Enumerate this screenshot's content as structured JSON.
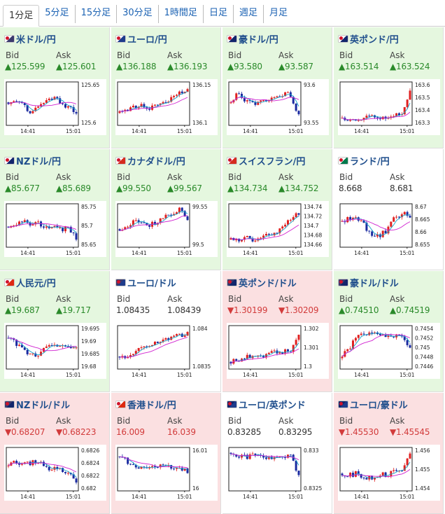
{
  "tabs": [
    "1分足",
    "5分足",
    "15分足",
    "30分足",
    "1時間足",
    "日足",
    "週足",
    "月足"
  ],
  "active_tab": 0,
  "labels": {
    "bid": "Bid",
    "ask": "Ask"
  },
  "colors": {
    "up_bg": "#e5f7df",
    "down_bg": "#fbe0e1",
    "up_text": "#2a8a2a",
    "down_text": "#d23b3b",
    "candle_up": "#e02020",
    "candle_down": "#1a2aa0",
    "ma_fast": "#14a3c8",
    "ma_slow": "#d020d0"
  },
  "pairs": [
    {
      "name": "米ドル/円",
      "flag": "jp-us",
      "trend": "up",
      "bid": "▲125.599",
      "ask": "▲125.601",
      "yticks": [
        "125.65",
        "125.6"
      ],
      "xticks": [
        "14:41",
        "15:01"
      ]
    },
    {
      "name": "ユーロ/円",
      "flag": "jp-eu",
      "trend": "up",
      "bid": "▲136.188",
      "ask": "▲136.193",
      "yticks": [
        "136.15",
        "136.1"
      ],
      "xticks": [
        "14:41",
        "15:01"
      ]
    },
    {
      "name": "豪ドル/円",
      "flag": "jp-au",
      "trend": "up",
      "bid": "▲93.580",
      "ask": "▲93.587",
      "yticks": [
        "93.6",
        "93.55"
      ],
      "xticks": [
        "14:41",
        "15:01"
      ]
    },
    {
      "name": "英ポンド/円",
      "flag": "jp-gb",
      "trend": "up",
      "bid": "▲163.514",
      "ask": "▲163.524",
      "yticks": [
        "163.6",
        "163.5",
        "163.4",
        "163.3"
      ],
      "xticks": [
        "14:41",
        "15:01"
      ]
    },
    {
      "name": "NZドル/円",
      "flag": "jp-nz",
      "trend": "up",
      "bid": "▲85.677",
      "ask": "▲85.689",
      "yticks": [
        "85.75",
        "85.7",
        "85.65"
      ],
      "xticks": [
        "14:41",
        "15:01"
      ]
    },
    {
      "name": "カナダドル/円",
      "flag": "jp-ca",
      "trend": "up",
      "bid": "▲99.550",
      "ask": "▲99.567",
      "yticks": [
        "99.55",
        "99.5"
      ],
      "xticks": [
        "14:41",
        "15:01"
      ]
    },
    {
      "name": "スイスフラン/円",
      "flag": "jp-ch",
      "trend": "up",
      "bid": "▲134.734",
      "ask": "▲134.752",
      "yticks": [
        "134.74",
        "134.72",
        "134.7",
        "134.68",
        "134.66"
      ],
      "xticks": [
        "14:41",
        "15:01"
      ]
    },
    {
      "name": "ランド/円",
      "flag": "jp-za",
      "trend": "flat",
      "bid": "8.668",
      "ask": "8.681",
      "yticks": [
        "8.67",
        "8.665",
        "8.66",
        "8.655"
      ],
      "xticks": [
        "14:41",
        "15:01"
      ]
    },
    {
      "name": "人民元/円",
      "flag": "jp-cn",
      "trend": "up",
      "bid": "▲19.687",
      "ask": "▲19.717",
      "yticks": [
        "19.695",
        "19.69",
        "19.685",
        "19.68"
      ],
      "xticks": [
        "14:41",
        "15:01"
      ]
    },
    {
      "name": "ユーロ/ドル",
      "flag": "us-eu",
      "trend": "flat",
      "bid": "1.08435",
      "ask": "1.08439",
      "yticks": [
        "1.084",
        "1.0835"
      ],
      "xticks": [
        "14:41",
        "15:01"
      ]
    },
    {
      "name": "英ポンド/ドル",
      "flag": "us-gb",
      "trend": "down",
      "bid": "▼1.30199",
      "ask": "▼1.30209",
      "yticks": [
        "1.302",
        "1.301",
        "1.3"
      ],
      "xticks": [
        "14:41",
        "15:01"
      ]
    },
    {
      "name": "豪ドル/ドル",
      "flag": "us-au",
      "trend": "up",
      "bid": "▲0.74510",
      "ask": "▲0.74519",
      "yticks": [
        "0.7454",
        "0.7452",
        "0.745",
        "0.7448",
        "0.7446"
      ],
      "xticks": [
        "14:41",
        "15:01"
      ]
    },
    {
      "name": "NZドル/ドル",
      "flag": "us-nz",
      "trend": "down",
      "bid": "▼0.68207",
      "ask": "▼0.68223",
      "yticks": [
        "0.6826",
        "0.6824",
        "0.6822",
        "0.682"
      ],
      "xticks": [
        "14:41",
        "15:01"
      ]
    },
    {
      "name": "香港ドル/円",
      "flag": "jp-hk",
      "trend": "down",
      "bid": "16.009",
      "ask": "16.039",
      "yticks": [
        "16.01",
        "16"
      ],
      "xticks": [
        "14:41",
        "15:01"
      ]
    },
    {
      "name": "ユーロ/英ポンド",
      "flag": "gb-eu",
      "trend": "flat",
      "bid": "0.83285",
      "ask": "0.83295",
      "yticks": [
        "0.833",
        "0.8325"
      ],
      "xticks": [
        "14:41",
        "15:01"
      ]
    },
    {
      "name": "ユーロ/豪ドル",
      "flag": "au-eu",
      "trend": "down",
      "bid": "▼1.45530",
      "ask": "▼1.45545",
      "yticks": [
        "1.456",
        "1.455",
        "1.454"
      ],
      "xticks": [
        "14:41",
        "15:01"
      ]
    }
  ]
}
